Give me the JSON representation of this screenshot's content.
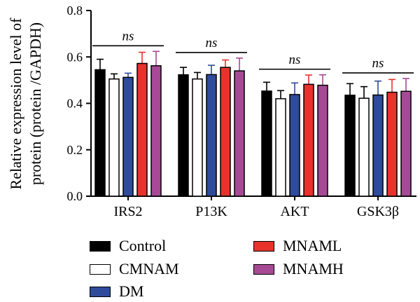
{
  "chart_data": {
    "type": "bar",
    "ylabel": "Relative expression level of protein (protein /GAPDH)",
    "ylabel_lines": [
      "Relative expression level of",
      "protein (protein /GAPDH)"
    ],
    "ylim": [
      0,
      0.8
    ],
    "yticks": [
      "0.0",
      "0.2",
      "0.4",
      "0.6",
      "0.8"
    ],
    "categories": [
      "IRS2",
      "P13K",
      "AKT",
      "GSK3β"
    ],
    "annotation": "ns",
    "grid": false,
    "legend_position": "bottom",
    "series": [
      {
        "name": "Control",
        "color": "#000000",
        "values": [
          0.545,
          0.523,
          0.453,
          0.435
        ],
        "errors": [
          0.045,
          0.032,
          0.038,
          0.05
        ]
      },
      {
        "name": "CMNAM",
        "color": "#ffffff",
        "values": [
          0.505,
          0.505,
          0.42,
          0.422
        ],
        "errors": [
          0.022,
          0.028,
          0.035,
          0.05
        ]
      },
      {
        "name": "DM",
        "color": "#2e4b9c",
        "values": [
          0.512,
          0.524,
          0.438,
          0.436
        ],
        "errors": [
          0.018,
          0.04,
          0.05,
          0.06
        ]
      },
      {
        "name": "MNAML",
        "color": "#e8322c",
        "values": [
          0.572,
          0.555,
          0.482,
          0.448
        ],
        "errors": [
          0.048,
          0.032,
          0.04,
          0.055
        ]
      },
      {
        "name": "MNAMH",
        "color": "#a64a96",
        "values": [
          0.562,
          0.54,
          0.478,
          0.452
        ],
        "errors": [
          0.062,
          0.055,
          0.045,
          0.055
        ]
      }
    ]
  }
}
